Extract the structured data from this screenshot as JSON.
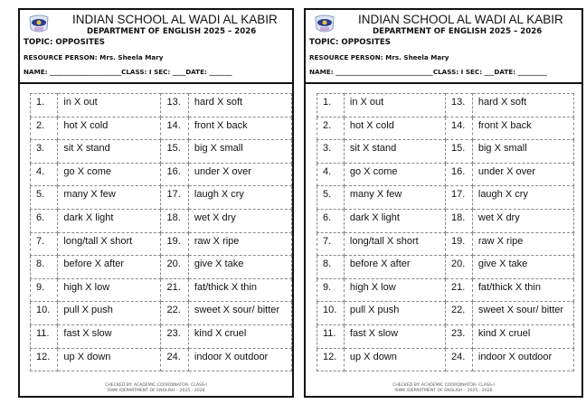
{
  "sheets": [
    {
      "school": "INDIAN SCHOOL AL WADI AL KABIR",
      "department": "DEPARTMENT OF ENGLISH 2025 – 2026",
      "topic": "TOPIC: OPPOSITES",
      "resource_person": "RESOURCE PERSON: Mrs. Sheela Mary",
      "name_line": "NAME: ______________________CLASS: I SEC: ____DATE: _______",
      "footer_line1": "CHECKED BY: ACADEMIC COORDINATOR- CLASS-I",
      "footer_line2": "ISWK /DEPARTMENT OF ENGLISH – 2025 - 2026"
    },
    {
      "school": "INDIAN SCHOOL AL WADI AL KABIR",
      "department": "DEPARTMENT OF ENGLISH 2025 – 2026",
      "topic": "TOPIC: OPPOSITES",
      "resource_person": "RESOURCE PERSON: Mrs. Sheela Mary",
      "name_line": "NAME: ______________________________CLASS: I SEC: ___DATE: _________",
      "footer_line1": "CHECKED BY: ACADEMIC COORDINATOR- CLASS-I",
      "footer_line2": "ISWK /DEPARTMENT OF ENGLISH – 2025 - 2026"
    }
  ],
  "opposites": [
    {
      "n": "1.",
      "w": "in X out"
    },
    {
      "n": "2.",
      "w": "hot X cold"
    },
    {
      "n": "3.",
      "w": "sit X stand"
    },
    {
      "n": "4.",
      "w": "go X come"
    },
    {
      "n": "5.",
      "w": "many X few"
    },
    {
      "n": "6.",
      "w": "dark X light"
    },
    {
      "n": "7.",
      "w": "long/tall X short"
    },
    {
      "n": "8.",
      "w": "before X after"
    },
    {
      "n": "9.",
      "w": "high X low"
    },
    {
      "n": "10.",
      "w": "pull X push"
    },
    {
      "n": "11.",
      "w": "fast X slow"
    },
    {
      "n": "12.",
      "w": "up X down"
    },
    {
      "n": "13.",
      "w": "hard X soft"
    },
    {
      "n": "14.",
      "w": "front X back"
    },
    {
      "n": "15.",
      "w": "big X small"
    },
    {
      "n": "16.",
      "w": "under X over"
    },
    {
      "n": "17.",
      "w": "laugh X cry"
    },
    {
      "n": "18.",
      "w": "wet X dry"
    },
    {
      "n": "19.",
      "w": "raw X ripe"
    },
    {
      "n": "20.",
      "w": "give X take"
    },
    {
      "n": "21.",
      "w": "fat/thick X thin"
    },
    {
      "n": "22.",
      "w": "sweet X sour/ bitter"
    },
    {
      "n": "23.",
      "w": "kind X cruel"
    },
    {
      "n": "24.",
      "w": "indoor X outdoor"
    }
  ]
}
